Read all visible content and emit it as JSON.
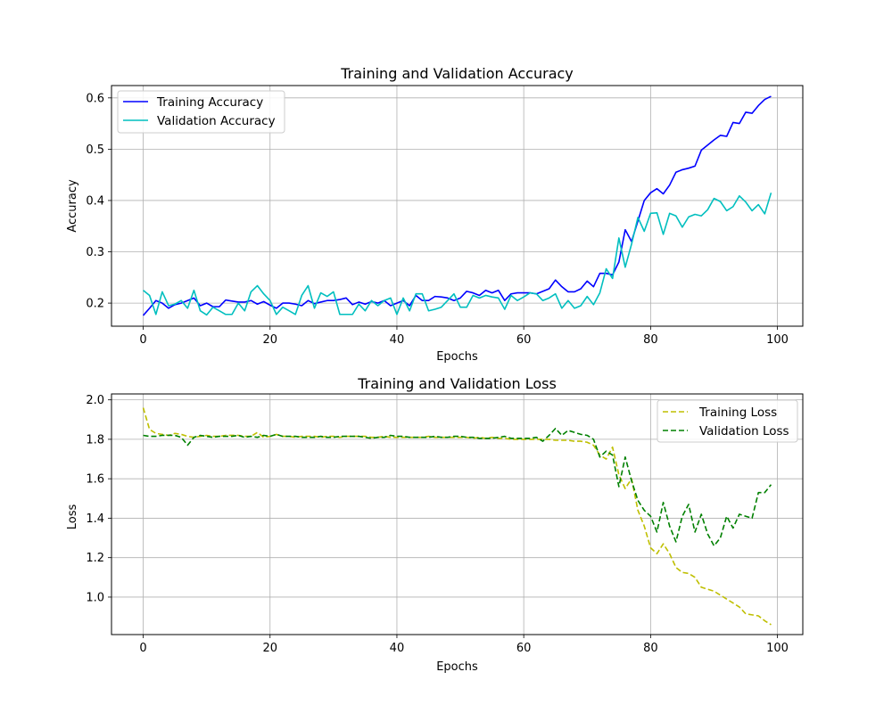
{
  "chart_data": [
    {
      "type": "line",
      "title": "Training and Validation Accuracy",
      "xlabel": "Epochs",
      "ylabel": "Accuracy",
      "xlim": [
        -5,
        104
      ],
      "ylim": [
        0.155,
        0.624
      ],
      "xticks": [
        0,
        20,
        40,
        60,
        80,
        100
      ],
      "xtick_labels": [
        "0",
        "20",
        "40",
        "60",
        "80",
        "100"
      ],
      "yticks": [
        0.2,
        0.3,
        0.4,
        0.5,
        0.6
      ],
      "ytick_labels": [
        "0.2",
        "0.3",
        "0.4",
        "0.5",
        "0.6"
      ],
      "grid": true,
      "legend_position": "upper-left",
      "x": [
        0,
        1,
        2,
        3,
        4,
        5,
        6,
        7,
        8,
        9,
        10,
        11,
        12,
        13,
        14,
        15,
        16,
        17,
        18,
        19,
        20,
        21,
        22,
        23,
        24,
        25,
        26,
        27,
        28,
        29,
        30,
        31,
        32,
        33,
        34,
        35,
        36,
        37,
        38,
        39,
        40,
        41,
        42,
        43,
        44,
        45,
        46,
        47,
        48,
        49,
        50,
        51,
        52,
        53,
        54,
        55,
        56,
        57,
        58,
        59,
        60,
        61,
        62,
        63,
        64,
        65,
        66,
        67,
        68,
        69,
        70,
        71,
        72,
        73,
        74,
        75,
        76,
        77,
        78,
        79,
        80,
        81,
        82,
        83,
        84,
        85,
        86,
        87,
        88,
        89,
        90,
        91,
        92,
        93,
        94,
        95,
        96,
        97,
        98,
        99
      ],
      "series": [
        {
          "name": "Training Accuracy",
          "color": "#0000ff",
          "dash": "solid",
          "values": [
            0.176,
            0.19,
            0.205,
            0.2,
            0.19,
            0.197,
            0.2,
            0.205,
            0.21,
            0.195,
            0.2,
            0.193,
            0.193,
            0.206,
            0.204,
            0.202,
            0.202,
            0.205,
            0.198,
            0.203,
            0.196,
            0.19,
            0.2,
            0.2,
            0.198,
            0.195,
            0.205,
            0.199,
            0.202,
            0.205,
            0.205,
            0.207,
            0.21,
            0.197,
            0.202,
            0.198,
            0.203,
            0.2,
            0.205,
            0.195,
            0.2,
            0.205,
            0.195,
            0.215,
            0.205,
            0.205,
            0.213,
            0.212,
            0.21,
            0.205,
            0.21,
            0.223,
            0.22,
            0.215,
            0.225,
            0.22,
            0.225,
            0.205,
            0.218,
            0.22,
            0.22,
            0.22,
            0.218,
            0.223,
            0.228,
            0.245,
            0.232,
            0.222,
            0.222,
            0.228,
            0.243,
            0.232,
            0.258,
            0.258,
            0.255,
            0.28,
            0.343,
            0.32,
            0.36,
            0.4,
            0.415,
            0.423,
            0.413,
            0.43,
            0.455,
            0.46,
            0.463,
            0.467,
            0.498,
            0.508,
            0.518,
            0.527,
            0.525,
            0.552,
            0.55,
            0.572,
            0.57,
            0.585,
            0.597,
            0.603
          ]
        },
        {
          "name": "Validation Accuracy",
          "color": "#00bfbf",
          "dash": "solid",
          "values": [
            0.225,
            0.215,
            0.178,
            0.222,
            0.195,
            0.198,
            0.205,
            0.19,
            0.225,
            0.185,
            0.177,
            0.192,
            0.185,
            0.178,
            0.178,
            0.2,
            0.185,
            0.222,
            0.234,
            0.218,
            0.205,
            0.178,
            0.192,
            0.185,
            0.178,
            0.215,
            0.234,
            0.19,
            0.22,
            0.213,
            0.222,
            0.178,
            0.178,
            0.178,
            0.198,
            0.185,
            0.205,
            0.195,
            0.205,
            0.21,
            0.178,
            0.21,
            0.185,
            0.218,
            0.218,
            0.185,
            0.188,
            0.192,
            0.205,
            0.218,
            0.192,
            0.192,
            0.215,
            0.21,
            0.215,
            0.212,
            0.21,
            0.188,
            0.215,
            0.205,
            0.212,
            0.22,
            0.218,
            0.205,
            0.21,
            0.218,
            0.19,
            0.205,
            0.19,
            0.195,
            0.213,
            0.197,
            0.22,
            0.267,
            0.248,
            0.327,
            0.27,
            0.315,
            0.367,
            0.34,
            0.375,
            0.376,
            0.334,
            0.375,
            0.37,
            0.348,
            0.368,
            0.373,
            0.37,
            0.382,
            0.404,
            0.398,
            0.38,
            0.388,
            0.409,
            0.397,
            0.38,
            0.392,
            0.374,
            0.415
          ]
        }
      ]
    },
    {
      "type": "line",
      "title": "Training and Validation Loss",
      "xlabel": "Epochs",
      "ylabel": "Loss",
      "xlim": [
        -5,
        104
      ],
      "ylim": [
        0.81,
        2.03
      ],
      "xticks": [
        0,
        20,
        40,
        60,
        80,
        100
      ],
      "xtick_labels": [
        "0",
        "20",
        "40",
        "60",
        "80",
        "100"
      ],
      "yticks": [
        1.0,
        1.2,
        1.4,
        1.6,
        1.8,
        2.0
      ],
      "ytick_labels": [
        "1.0",
        "1.2",
        "1.4",
        "1.6",
        "1.8",
        "2.0"
      ],
      "grid": true,
      "legend_position": "upper-right",
      "x": [
        0,
        1,
        2,
        3,
        4,
        5,
        6,
        7,
        8,
        9,
        10,
        11,
        12,
        13,
        14,
        15,
        16,
        17,
        18,
        19,
        20,
        21,
        22,
        23,
        24,
        25,
        26,
        27,
        28,
        29,
        30,
        31,
        32,
        33,
        34,
        35,
        36,
        37,
        38,
        39,
        40,
        41,
        42,
        43,
        44,
        45,
        46,
        47,
        48,
        49,
        50,
        51,
        52,
        53,
        54,
        55,
        56,
        57,
        58,
        59,
        60,
        61,
        62,
        63,
        64,
        65,
        66,
        67,
        68,
        69,
        70,
        71,
        72,
        73,
        74,
        75,
        76,
        77,
        78,
        79,
        80,
        81,
        82,
        83,
        84,
        85,
        86,
        87,
        88,
        89,
        90,
        91,
        92,
        93,
        94,
        95,
        96,
        97,
        98,
        99
      ],
      "series": [
        {
          "name": "Training Loss",
          "color": "#bfbf00",
          "dash": "dashed",
          "values": [
            1.96,
            1.85,
            1.83,
            1.825,
            1.82,
            1.83,
            1.825,
            1.815,
            1.81,
            1.815,
            1.82,
            1.815,
            1.815,
            1.82,
            1.82,
            1.82,
            1.815,
            1.815,
            1.835,
            1.81,
            1.815,
            1.825,
            1.815,
            1.815,
            1.81,
            1.815,
            1.815,
            1.815,
            1.81,
            1.815,
            1.815,
            1.81,
            1.815,
            1.815,
            1.815,
            1.815,
            1.81,
            1.81,
            1.815,
            1.81,
            1.81,
            1.81,
            1.81,
            1.81,
            1.81,
            1.815,
            1.81,
            1.81,
            1.81,
            1.81,
            1.81,
            1.81,
            1.805,
            1.81,
            1.805,
            1.81,
            1.805,
            1.805,
            1.8,
            1.8,
            1.8,
            1.8,
            1.8,
            1.8,
            1.8,
            1.795,
            1.795,
            1.795,
            1.79,
            1.79,
            1.785,
            1.77,
            1.72,
            1.7,
            1.76,
            1.62,
            1.55,
            1.6,
            1.44,
            1.36,
            1.25,
            1.22,
            1.27,
            1.22,
            1.15,
            1.125,
            1.12,
            1.1,
            1.05,
            1.04,
            1.03,
            1.01,
            0.99,
            0.97,
            0.95,
            0.915,
            0.91,
            0.905,
            0.88,
            0.86
          ]
        },
        {
          "name": "Validation Loss",
          "color": "#008000",
          "dash": "dashed",
          "values": [
            1.82,
            1.815,
            1.815,
            1.82,
            1.82,
            1.82,
            1.81,
            1.77,
            1.81,
            1.82,
            1.815,
            1.81,
            1.815,
            1.815,
            1.815,
            1.82,
            1.81,
            1.815,
            1.81,
            1.82,
            1.815,
            1.825,
            1.815,
            1.815,
            1.815,
            1.81,
            1.81,
            1.81,
            1.815,
            1.81,
            1.81,
            1.815,
            1.815,
            1.815,
            1.815,
            1.81,
            1.805,
            1.81,
            1.81,
            1.82,
            1.815,
            1.815,
            1.81,
            1.81,
            1.81,
            1.81,
            1.815,
            1.81,
            1.81,
            1.815,
            1.815,
            1.81,
            1.81,
            1.805,
            1.805,
            1.805,
            1.81,
            1.815,
            1.805,
            1.805,
            1.805,
            1.805,
            1.81,
            1.79,
            1.82,
            1.855,
            1.82,
            1.845,
            1.835,
            1.825,
            1.82,
            1.8,
            1.71,
            1.74,
            1.72,
            1.56,
            1.71,
            1.59,
            1.49,
            1.44,
            1.41,
            1.33,
            1.48,
            1.36,
            1.28,
            1.41,
            1.47,
            1.33,
            1.42,
            1.32,
            1.26,
            1.3,
            1.41,
            1.35,
            1.42,
            1.41,
            1.4,
            1.53,
            1.53,
            1.57
          ]
        }
      ]
    }
  ]
}
